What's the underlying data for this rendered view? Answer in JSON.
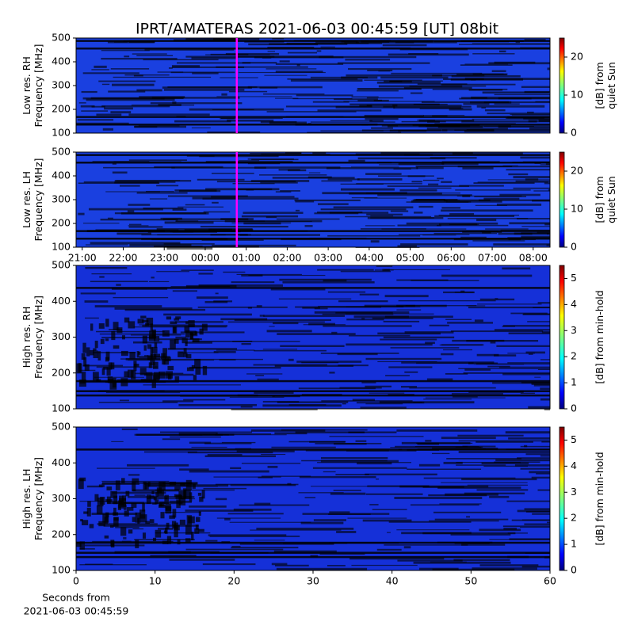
{
  "title": "IPRT/AMATERAS 2021-06-03 00:45:59 [UT]   08bit",
  "chart_data": [
    {
      "type": "heatmap",
      "ylabel": [
        "Low res. RH",
        "Frequency [MHz]"
      ],
      "ylim": [
        100,
        500
      ],
      "yticks": [
        100,
        200,
        300,
        400,
        500
      ],
      "xlim": [
        20.85,
        32.41
      ],
      "marker_x": 24.77,
      "marker_color": "#ff00ff",
      "colorbar": {
        "label": [
          "[dB] from",
          "quiet Sun"
        ],
        "lim": [
          0,
          25
        ],
        "ticks": [
          0,
          10,
          20
        ]
      }
    },
    {
      "type": "heatmap",
      "ylabel": [
        "Low res. LH",
        "Frequency [MHz]"
      ],
      "ylim": [
        100,
        500
      ],
      "yticks": [
        100,
        200,
        300,
        400,
        500
      ],
      "xlim": [
        20.85,
        32.41
      ],
      "marker_x": 24.77,
      "marker_color": "#ff00ff",
      "xticks": [
        {
          "value": 21,
          "label": "21:00"
        },
        {
          "value": 22,
          "label": "22:00"
        },
        {
          "value": 23,
          "label": "23:00"
        },
        {
          "value": 24,
          "label": "00:00"
        },
        {
          "value": 25,
          "label": "01:00"
        },
        {
          "value": 26,
          "label": "02:00"
        },
        {
          "value": 27,
          "label": "03:00"
        },
        {
          "value": 28,
          "label": "04:00"
        },
        {
          "value": 29,
          "label": "05:00"
        },
        {
          "value": 30,
          "label": "06:00"
        },
        {
          "value": 31,
          "label": "07:00"
        },
        {
          "value": 32,
          "label": "08:00"
        }
      ],
      "colorbar": {
        "label": [
          "[dB] from",
          "quiet Sun"
        ],
        "lim": [
          0,
          25
        ],
        "ticks": [
          0,
          10,
          20
        ]
      }
    },
    {
      "type": "heatmap",
      "ylabel": [
        "High res. RH",
        "Frequency [MHz]"
      ],
      "ylim": [
        100,
        500
      ],
      "yticks": [
        100,
        200,
        300,
        400,
        500
      ],
      "xlim": [
        0,
        60
      ],
      "colorbar": {
        "label": [
          "[dB] from min-hold"
        ],
        "lim": [
          0,
          5.5
        ],
        "ticks": [
          0,
          1,
          2,
          3,
          4,
          5
        ]
      }
    },
    {
      "type": "heatmap",
      "ylabel": [
        "High res. LH",
        "Frequency [MHz]"
      ],
      "ylim": [
        100,
        500
      ],
      "yticks": [
        100,
        200,
        300,
        400,
        500
      ],
      "xlim": [
        0,
        60
      ],
      "xticks": [
        0,
        10,
        20,
        30,
        40,
        50,
        60
      ],
      "xlabel": [
        "Seconds from",
        "2021-06-03 00:45:59"
      ],
      "colorbar": {
        "label": [
          "[dB] from min-hold"
        ],
        "lim": [
          0,
          5.5
        ],
        "ticks": [
          0,
          1,
          2,
          3,
          4,
          5
        ]
      }
    }
  ]
}
